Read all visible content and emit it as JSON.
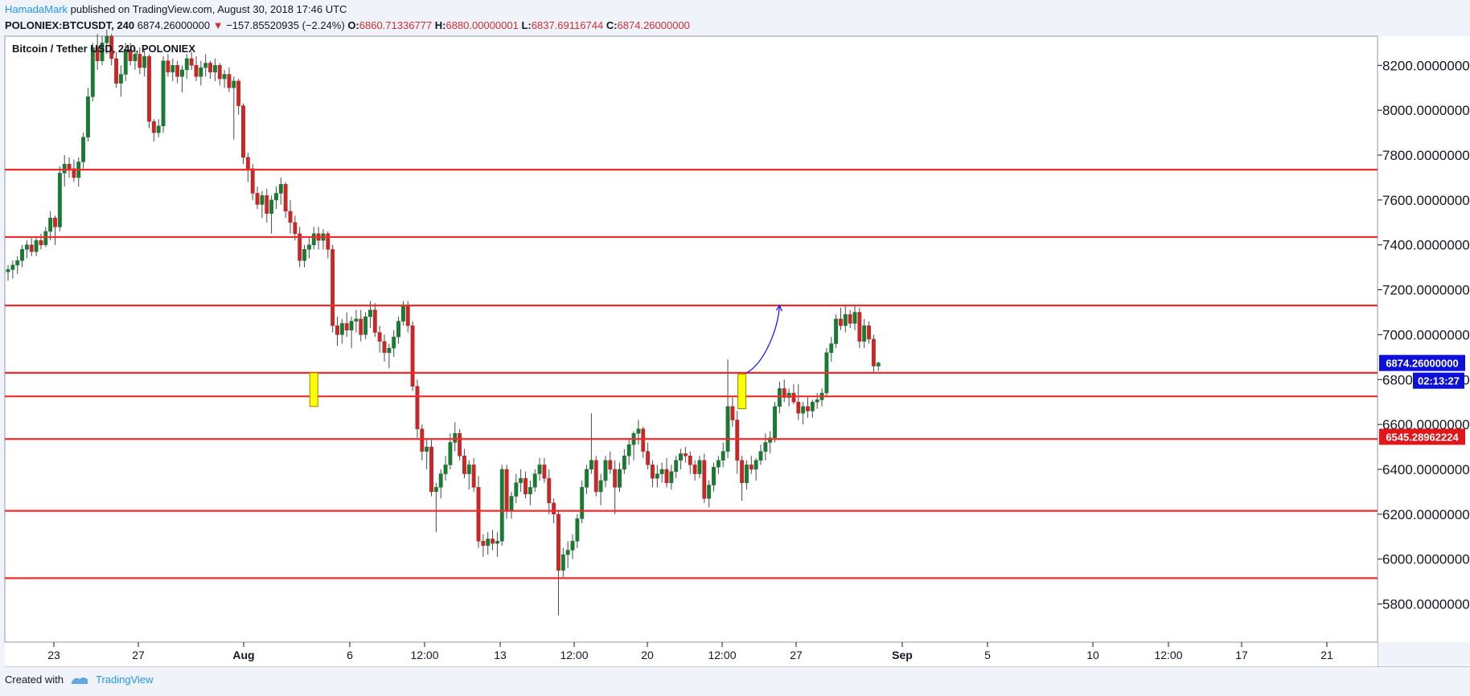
{
  "header": {
    "author": "HamadaMark",
    "published_text": "published on TradingView.com, August 30, 2018 17:46 UTC",
    "symbol": "POLONIEX:BTCUSDT, 240",
    "last_price": "6874.26000000",
    "change_arrow": "▼",
    "change": "−157.85520935 (−2.24%)",
    "o_label": "O:",
    "o_value": "6860.71336777",
    "h_label": "H:",
    "h_value": "6880.00000001",
    "l_label": "L:",
    "l_value": "6837.69116744",
    "c_label": "C:",
    "c_value": "6874.26000000"
  },
  "chart_data": {
    "type": "candlestick",
    "title": "Bitcoin / Tether USD, 240, POLONIEX",
    "y_range": [
      5630,
      8330
    ],
    "y_ticks": [
      {
        "value": 8200,
        "label": "8200.0000000"
      },
      {
        "value": 8000,
        "label": "8000.0000000"
      },
      {
        "value": 7800,
        "label": "7800.0000000"
      },
      {
        "value": 7600,
        "label": "7600.0000000"
      },
      {
        "value": 7400,
        "label": "7400.0000000"
      },
      {
        "value": 7200,
        "label": "7200.0000000"
      },
      {
        "value": 7000,
        "label": "7000.0000000"
      },
      {
        "value": 6800,
        "label": "6800.0000000"
      },
      {
        "value": 6600,
        "label": "6600.0000000"
      },
      {
        "value": 6400,
        "label": "6400.0000000"
      },
      {
        "value": 6200,
        "label": "6200.0000000"
      },
      {
        "value": 6000,
        "label": "6000.0000000"
      },
      {
        "value": 5800,
        "label": "5800.0000000"
      }
    ],
    "x_ticks": [
      {
        "label": "23",
        "bold": false
      },
      {
        "label": "27",
        "bold": false
      },
      {
        "label": "Aug",
        "bold": true
      },
      {
        "label": "6",
        "bold": false
      },
      {
        "label": "12:00",
        "bold": false
      },
      {
        "label": "13",
        "bold": false
      },
      {
        "label": "12:00",
        "bold": false
      },
      {
        "label": "20",
        "bold": false
      },
      {
        "label": "12:00",
        "bold": false
      },
      {
        "label": "27",
        "bold": false
      },
      {
        "label": "Sep",
        "bold": true
      },
      {
        "label": "5",
        "bold": false
      },
      {
        "label": "10",
        "bold": false
      },
      {
        "label": "12:00",
        "bold": false
      },
      {
        "label": "17",
        "bold": false
      },
      {
        "label": "21",
        "bold": false
      }
    ],
    "horizontal_levels": [
      7735,
      7435,
      7130,
      6830,
      6725,
      6535,
      6215,
      5915
    ],
    "price_badges": [
      {
        "label": "6874.26000000",
        "value": 6874,
        "color": "#0d10d6"
      },
      {
        "label": "02:13:27",
        "value": 6795,
        "color": "#0d10d6"
      },
      {
        "label": "6545.28962224",
        "value": 6545,
        "color": "#e0161b"
      }
    ],
    "highlight_boxes": [
      {
        "index": 65,
        "top": 6830,
        "bottom": 6680
      },
      {
        "index": 156,
        "top": 6825,
        "bottom": 6670
      }
    ],
    "projection_arrow": {
      "from_index": 157,
      "from_value": 6830,
      "to_index": 164,
      "to_value": 7130,
      "color": "#1a1aff"
    },
    "candles": [
      [
        7280,
        7310,
        7240,
        7290
      ],
      [
        7290,
        7330,
        7250,
        7310
      ],
      [
        7310,
        7350,
        7270,
        7330
      ],
      [
        7330,
        7400,
        7300,
        7380
      ],
      [
        7380,
        7420,
        7340,
        7400
      ],
      [
        7400,
        7430,
        7350,
        7370
      ],
      [
        7370,
        7440,
        7350,
        7420
      ],
      [
        7420,
        7450,
        7380,
        7400
      ],
      [
        7400,
        7480,
        7390,
        7460
      ],
      [
        7460,
        7550,
        7420,
        7520
      ],
      [
        7520,
        7530,
        7400,
        7480
      ],
      [
        7480,
        7750,
        7460,
        7720
      ],
      [
        7720,
        7800,
        7660,
        7760
      ],
      [
        7760,
        7790,
        7700,
        7740
      ],
      [
        7740,
        7780,
        7680,
        7700
      ],
      [
        7700,
        7790,
        7660,
        7770
      ],
      [
        7770,
        7900,
        7740,
        7880
      ],
      [
        7880,
        8100,
        7860,
        8060
      ],
      [
        8060,
        8300,
        8040,
        8280
      ],
      [
        8280,
        8340,
        8180,
        8220
      ],
      [
        8220,
        8330,
        8200,
        8300
      ],
      [
        8300,
        8360,
        8250,
        8330
      ],
      [
        8330,
        8340,
        8200,
        8230
      ],
      [
        8230,
        8260,
        8100,
        8120
      ],
      [
        8120,
        8200,
        8060,
        8160
      ],
      [
        8160,
        8300,
        8130,
        8270
      ],
      [
        8270,
        8300,
        8200,
        8220
      ],
      [
        8220,
        8280,
        8180,
        8250
      ],
      [
        8250,
        8280,
        8160,
        8190
      ],
      [
        8190,
        8270,
        8150,
        8240
      ],
      [
        8240,
        8250,
        7920,
        7950
      ],
      [
        7950,
        7960,
        7860,
        7900
      ],
      [
        7900,
        7960,
        7880,
        7930
      ],
      [
        7930,
        8240,
        7900,
        8220
      ],
      [
        8220,
        8250,
        8150,
        8170
      ],
      [
        8170,
        8230,
        8130,
        8200
      ],
      [
        8200,
        8220,
        8120,
        8150
      ],
      [
        8150,
        8200,
        8080,
        8180
      ],
      [
        8180,
        8250,
        8140,
        8230
      ],
      [
        8230,
        8260,
        8180,
        8200
      ],
      [
        8200,
        8240,
        8130,
        8150
      ],
      [
        8150,
        8220,
        8110,
        8190
      ],
      [
        8190,
        8250,
        8150,
        8210
      ],
      [
        8210,
        8220,
        8140,
        8170
      ],
      [
        8170,
        8230,
        8130,
        8200
      ],
      [
        8200,
        8210,
        8110,
        8140
      ],
      [
        8140,
        8180,
        8100,
        8160
      ],
      [
        8160,
        8190,
        8080,
        8100
      ],
      [
        8100,
        8150,
        7870,
        8130
      ],
      [
        8130,
        8140,
        7980,
        8020
      ],
      [
        8020,
        8030,
        7760,
        7790
      ],
      [
        7790,
        7810,
        7680,
        7740
      ],
      [
        7740,
        7760,
        7600,
        7630
      ],
      [
        7630,
        7660,
        7560,
        7580
      ],
      [
        7580,
        7640,
        7520,
        7620
      ],
      [
        7620,
        7650,
        7500,
        7540
      ],
      [
        7540,
        7620,
        7450,
        7600
      ],
      [
        7600,
        7660,
        7560,
        7630
      ],
      [
        7630,
        7700,
        7580,
        7670
      ],
      [
        7670,
        7680,
        7520,
        7550
      ],
      [
        7550,
        7600,
        7450,
        7500
      ],
      [
        7500,
        7530,
        7420,
        7450
      ],
      [
        7450,
        7480,
        7300,
        7330
      ],
      [
        7330,
        7400,
        7300,
        7380
      ],
      [
        7380,
        7430,
        7340,
        7400
      ],
      [
        7400,
        7480,
        7380,
        7450
      ],
      [
        7450,
        7480,
        7380,
        7420
      ],
      [
        7420,
        7470,
        7380,
        7450
      ],
      [
        7450,
        7460,
        7340,
        7380
      ],
      [
        7380,
        7400,
        7010,
        7040
      ],
      [
        7040,
        7080,
        6950,
        7000
      ],
      [
        7000,
        7070,
        6960,
        7050
      ],
      [
        7050,
        7100,
        6990,
        7020
      ],
      [
        7020,
        7080,
        6940,
        7060
      ],
      [
        7060,
        7110,
        7010,
        7070
      ],
      [
        7070,
        7110,
        6970,
        7000
      ],
      [
        7000,
        7100,
        6980,
        7080
      ],
      [
        7080,
        7150,
        7030,
        7110
      ],
      [
        7110,
        7140,
        6990,
        7010
      ],
      [
        7010,
        7040,
        6920,
        6970
      ],
      [
        6970,
        7000,
        6880,
        6920
      ],
      [
        6920,
        6960,
        6850,
        6940
      ],
      [
        6940,
        7020,
        6900,
        6990
      ],
      [
        6990,
        7080,
        6960,
        7060
      ],
      [
        7060,
        7150,
        7040,
        7130
      ],
      [
        7130,
        7150,
        7010,
        7040
      ],
      [
        7040,
        7060,
        6750,
        6770
      ],
      [
        6770,
        6800,
        6540,
        6580
      ],
      [
        6580,
        6600,
        6440,
        6480
      ],
      [
        6480,
        6530,
        6400,
        6500
      ],
      [
        6500,
        6530,
        6280,
        6300
      ],
      [
        6300,
        6340,
        6120,
        6320
      ],
      [
        6320,
        6400,
        6270,
        6380
      ],
      [
        6380,
        6460,
        6350,
        6420
      ],
      [
        6420,
        6560,
        6400,
        6520
      ],
      [
        6520,
        6610,
        6480,
        6560
      ],
      [
        6560,
        6580,
        6440,
        6460
      ],
      [
        6460,
        6490,
        6360,
        6380
      ],
      [
        6380,
        6440,
        6310,
        6420
      ],
      [
        6420,
        6450,
        6300,
        6320
      ],
      [
        6320,
        6370,
        6050,
        6080
      ],
      [
        6080,
        6110,
        6010,
        6060
      ],
      [
        6060,
        6120,
        6020,
        6090
      ],
      [
        6090,
        6130,
        6040,
        6070
      ],
      [
        6070,
        6120,
        6010,
        6080
      ],
      [
        6080,
        6420,
        6060,
        6400
      ],
      [
        6400,
        6420,
        6180,
        6220
      ],
      [
        6220,
        6300,
        6180,
        6280
      ],
      [
        6280,
        6380,
        6250,
        6340
      ],
      [
        6340,
        6400,
        6300,
        6360
      ],
      [
        6360,
        6390,
        6270,
        6290
      ],
      [
        6290,
        6350,
        6240,
        6320
      ],
      [
        6320,
        6400,
        6300,
        6380
      ],
      [
        6380,
        6450,
        6350,
        6420
      ],
      [
        6420,
        6450,
        6340,
        6360
      ],
      [
        6360,
        6400,
        6200,
        6250
      ],
      [
        6250,
        6270,
        6160,
        6200
      ],
      [
        6200,
        6220,
        5750,
        5950
      ],
      [
        5950,
        6050,
        5920,
        6020
      ],
      [
        6020,
        6080,
        5960,
        6040
      ],
      [
        6040,
        6110,
        6000,
        6080
      ],
      [
        6080,
        6200,
        6050,
        6180
      ],
      [
        6180,
        6350,
        6160,
        6320
      ],
      [
        6320,
        6420,
        6290,
        6400
      ],
      [
        6400,
        6650,
        6380,
        6440
      ],
      [
        6440,
        6460,
        6280,
        6300
      ],
      [
        6300,
        6380,
        6240,
        6350
      ],
      [
        6350,
        6460,
        6320,
        6440
      ],
      [
        6440,
        6480,
        6380,
        6400
      ],
      [
        6400,
        6440,
        6200,
        6320
      ],
      [
        6320,
        6430,
        6300,
        6400
      ],
      [
        6400,
        6490,
        6380,
        6460
      ],
      [
        6460,
        6540,
        6420,
        6510
      ],
      [
        6510,
        6570,
        6440,
        6560
      ],
      [
        6560,
        6620,
        6510,
        6580
      ],
      [
        6580,
        6590,
        6450,
        6480
      ],
      [
        6480,
        6520,
        6400,
        6420
      ],
      [
        6420,
        6440,
        6320,
        6360
      ],
      [
        6360,
        6420,
        6320,
        6380
      ],
      [
        6380,
        6430,
        6340,
        6400
      ],
      [
        6400,
        6450,
        6320,
        6340
      ],
      [
        6340,
        6420,
        6310,
        6390
      ],
      [
        6390,
        6460,
        6360,
        6440
      ],
      [
        6440,
        6490,
        6400,
        6470
      ],
      [
        6470,
        6500,
        6430,
        6460
      ],
      [
        6460,
        6480,
        6380,
        6420
      ],
      [
        6420,
        6440,
        6350,
        6380
      ],
      [
        6380,
        6460,
        6360,
        6440
      ],
      [
        6440,
        6470,
        6250,
        6270
      ],
      [
        6270,
        6350,
        6230,
        6330
      ],
      [
        6330,
        6430,
        6300,
        6410
      ],
      [
        6410,
        6460,
        6380,
        6440
      ],
      [
        6440,
        6520,
        6410,
        6480
      ],
      [
        6480,
        6890,
        6450,
        6680
      ],
      [
        6680,
        6720,
        6590,
        6620
      ],
      [
        6620,
        6660,
        6380,
        6440
      ],
      [
        6440,
        6460,
        6260,
        6340
      ],
      [
        6340,
        6440,
        6310,
        6420
      ],
      [
        6420,
        6460,
        6380,
        6400
      ],
      [
        6400,
        6450,
        6350,
        6440
      ],
      [
        6440,
        6510,
        6420,
        6480
      ],
      [
        6480,
        6560,
        6440,
        6520
      ],
      [
        6520,
        6570,
        6470,
        6540
      ],
      [
        6540,
        6700,
        6520,
        6680
      ],
      [
        6680,
        6790,
        6650,
        6760
      ],
      [
        6760,
        6800,
        6700,
        6720
      ],
      [
        6720,
        6760,
        6680,
        6740
      ],
      [
        6740,
        6780,
        6690,
        6700
      ],
      [
        6700,
        6780,
        6620,
        6650
      ],
      [
        6650,
        6700,
        6600,
        6680
      ],
      [
        6680,
        6720,
        6630,
        6660
      ],
      [
        6660,
        6710,
        6630,
        6700
      ],
      [
        6700,
        6740,
        6670,
        6710
      ],
      [
        6710,
        6760,
        6680,
        6740
      ],
      [
        6740,
        6940,
        6720,
        6920
      ],
      [
        6920,
        6990,
        6880,
        6960
      ],
      [
        6960,
        7090,
        6940,
        7070
      ],
      [
        7070,
        7120,
        7020,
        7040
      ],
      [
        7040,
        7130,
        7010,
        7090
      ],
      [
        7090,
        7110,
        7030,
        7050
      ],
      [
        7050,
        7130,
        7020,
        7100
      ],
      [
        7100,
        7120,
        6940,
        6970
      ],
      [
        6970,
        7070,
        6940,
        7040
      ],
      [
        7040,
        7060,
        6960,
        6980
      ],
      [
        6980,
        7000,
        6830,
        6860
      ],
      [
        6860,
        6880,
        6838,
        6874
      ]
    ]
  },
  "footer": {
    "created_with": "Created with",
    "brand": "TradingView"
  }
}
